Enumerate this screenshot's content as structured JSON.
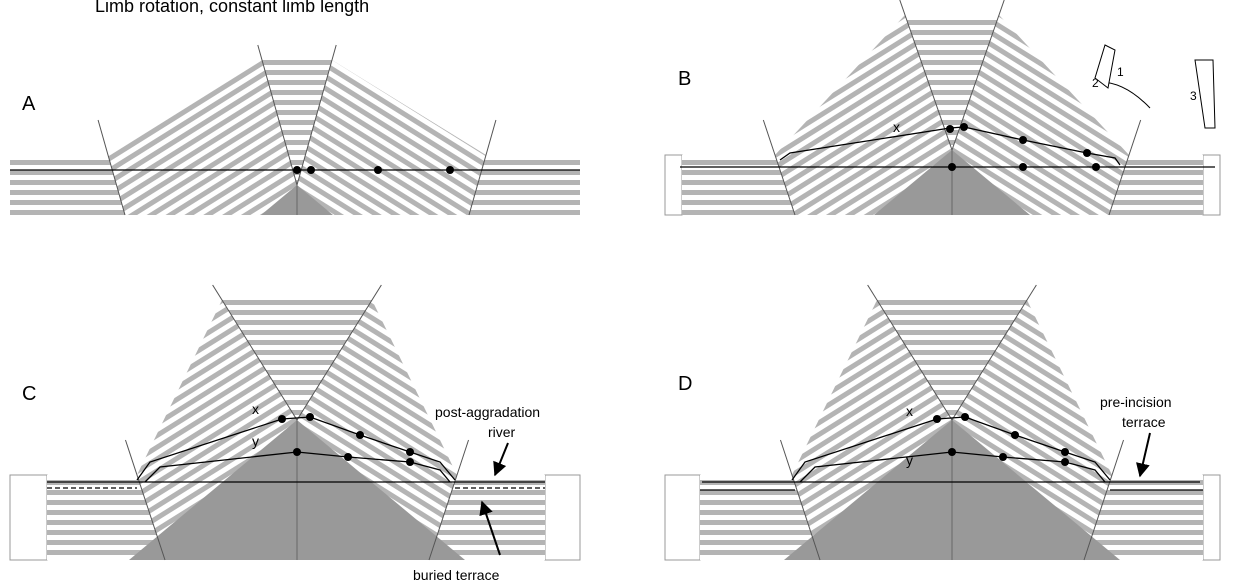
{
  "title": "Limb rotation, constant limb length",
  "panels": [
    {
      "label": "A",
      "texts": []
    },
    {
      "label": "B",
      "texts": [
        "x",
        "1",
        "2",
        "3"
      ]
    },
    {
      "label": "C",
      "texts": [
        "x",
        "y",
        "post-aggradation",
        "river",
        "buried terrace"
      ]
    },
    {
      "label": "D",
      "texts": [
        "x",
        "y",
        "pre-incision",
        "terrace"
      ]
    }
  ]
}
